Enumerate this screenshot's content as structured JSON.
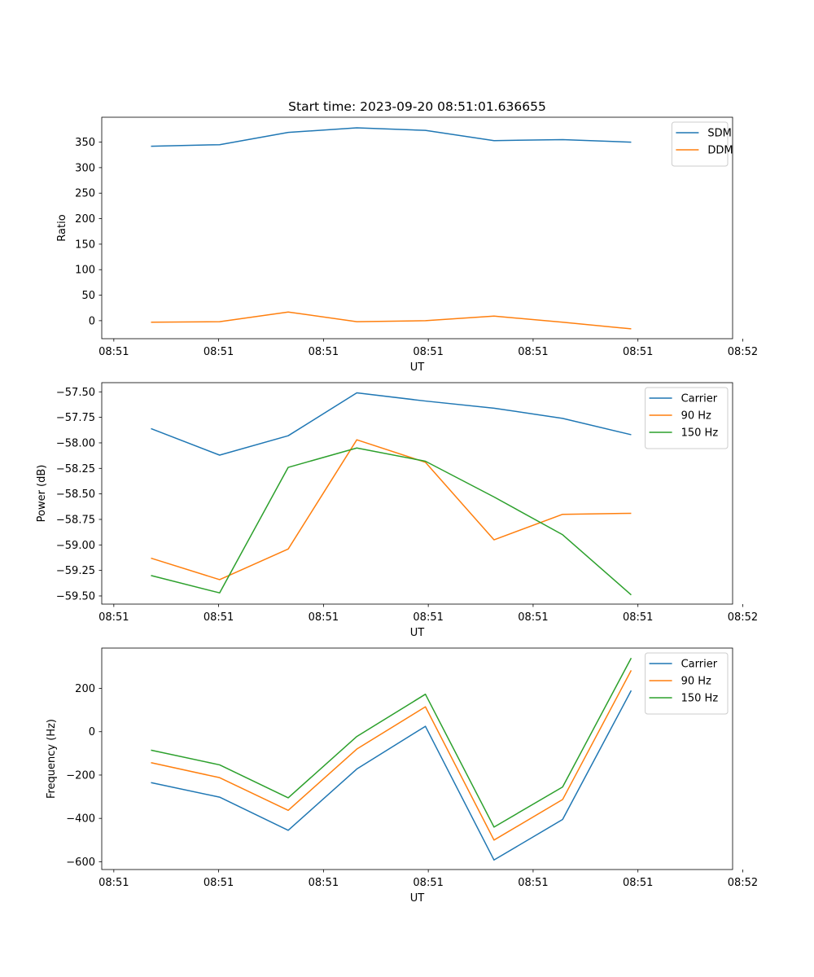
{
  "title": "Start time: 2023-09-20 08:51:01.636655",
  "colors": {
    "blue": "#1f77b4",
    "orange": "#ff7f0e",
    "green": "#2ca02c"
  },
  "chart_data": [
    {
      "type": "line",
      "title": "Start time: 2023-09-20 08:51:01.636655",
      "xlabel": "UT",
      "ylabel": "Ratio",
      "x": [
        1,
        2,
        3,
        4,
        5,
        6,
        7,
        8
      ],
      "xlim": [
        0.282,
        9.478
      ],
      "xticks": [
        0.458,
        1.986,
        3.514,
        5.042,
        6.57,
        8.098,
        9.626
      ],
      "xtick_labels": [
        "08:51",
        "08:51",
        "08:51",
        "08:51",
        "08:51",
        "08:51",
        "08:52"
      ],
      "ylim": [
        -35.3,
        398.8
      ],
      "yticks": [
        0,
        50,
        100,
        150,
        200,
        250,
        300,
        350
      ],
      "ytick_labels": [
        "0",
        "50",
        "100",
        "150",
        "200",
        "250",
        "300",
        "350"
      ],
      "legend": "top-right",
      "series": [
        {
          "name": "SDM",
          "color": "#1f77b4",
          "values": [
            342,
            345,
            369,
            378,
            373,
            353,
            355,
            350
          ]
        },
        {
          "name": "DDM",
          "color": "#ff7f0e",
          "values": [
            -3,
            -2,
            17,
            -2,
            0,
            9,
            -3,
            -16
          ]
        }
      ]
    },
    {
      "type": "line",
      "title": "",
      "xlabel": "UT",
      "ylabel": "Power (dB)",
      "x": [
        1,
        2,
        3,
        4,
        5,
        6,
        7,
        8
      ],
      "xlim": [
        0.282,
        9.478
      ],
      "xticks": [
        0.458,
        1.986,
        3.514,
        5.042,
        6.57,
        8.098,
        9.626
      ],
      "xtick_labels": [
        "08:51",
        "08:51",
        "08:51",
        "08:51",
        "08:51",
        "08:51",
        "08:52"
      ],
      "ylim": [
        -59.58,
        -57.41
      ],
      "yticks": [
        -59.5,
        -59.25,
        -59.0,
        -58.75,
        -58.5,
        -58.25,
        -58.0,
        -57.75,
        -57.5
      ],
      "ytick_labels": [
        "−59.50",
        "−59.25",
        "−59.00",
        "−58.75",
        "−58.50",
        "−58.25",
        "−58.00",
        "−57.75",
        "−57.50"
      ],
      "legend": "top-right",
      "series": [
        {
          "name": "Carrier",
          "color": "#1f77b4",
          "values": [
            -57.86,
            -58.12,
            -57.93,
            -57.51,
            -57.59,
            -57.66,
            -57.76,
            -57.92
          ]
        },
        {
          "name": "90 Hz",
          "color": "#ff7f0e",
          "values": [
            -59.13,
            -59.34,
            -59.04,
            -57.97,
            -58.19,
            -58.95,
            -58.7,
            -58.69
          ]
        },
        {
          "name": "150 Hz",
          "color": "#2ca02c",
          "values": [
            -59.3,
            -59.47,
            -58.24,
            -58.05,
            -58.18,
            -58.53,
            -58.9,
            -59.49
          ]
        }
      ]
    },
    {
      "type": "line",
      "title": "",
      "xlabel": "UT",
      "ylabel": "Frequency (Hz)",
      "x": [
        1,
        2,
        3,
        4,
        5,
        6,
        7,
        8
      ],
      "xlim": [
        0.282,
        9.478
      ],
      "xticks": [
        0.458,
        1.986,
        3.514,
        5.042,
        6.57,
        8.098,
        9.626
      ],
      "xtick_labels": [
        "08:51",
        "08:51",
        "08:51",
        "08:51",
        "08:51",
        "08:51",
        "08:52"
      ],
      "ylim": [
        -636,
        386
      ],
      "yticks": [
        -600,
        -400,
        -200,
        0,
        200
      ],
      "ytick_labels": [
        "−600",
        "−400",
        "−200",
        "0",
        "200"
      ],
      "legend": "top-right",
      "series": [
        {
          "name": "Carrier",
          "color": "#1f77b4",
          "values": [
            -235,
            -302,
            -455,
            -172,
            25,
            -592,
            -405,
            190
          ]
        },
        {
          "name": "90 Hz",
          "color": "#ff7f0e",
          "values": [
            -143,
            -212,
            -363,
            -80,
            115,
            -500,
            -313,
            283
          ]
        },
        {
          "name": "150 Hz",
          "color": "#2ca02c",
          "values": [
            -85,
            -153,
            -305,
            -22,
            173,
            -440,
            -255,
            340
          ]
        }
      ]
    }
  ]
}
